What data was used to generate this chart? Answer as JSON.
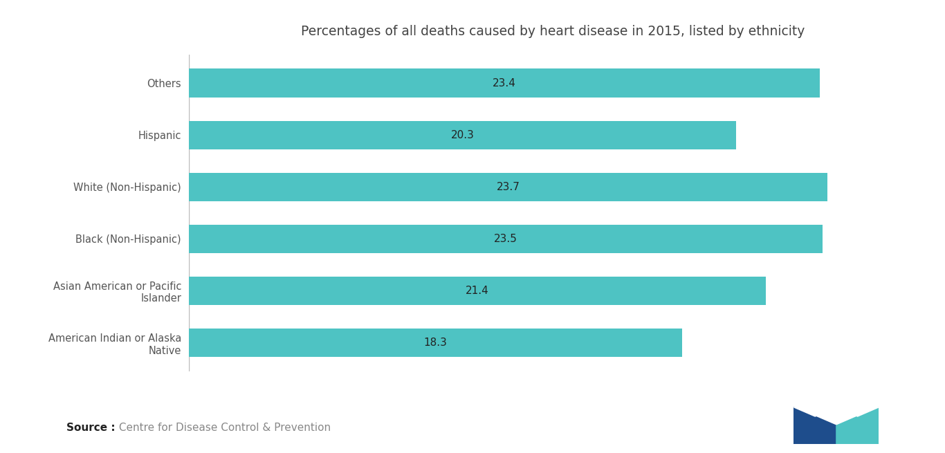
{
  "title": "Percentages of all deaths caused by heart disease in 2015, listed by ethnicity",
  "categories": [
    "American Indian or Alaska\nNative",
    "Asian American or Pacific\nIslander",
    "Black (Non-Hispanic)",
    "White (Non-Hispanic)",
    "Hispanic",
    "Others"
  ],
  "values": [
    18.3,
    21.4,
    23.5,
    23.7,
    20.3,
    23.4
  ],
  "bar_color": "#4EC3C3",
  "bar_height": 0.55,
  "xlim": [
    0,
    27
  ],
  "title_fontsize": 13.5,
  "label_fontsize": 10.5,
  "value_fontsize": 11,
  "source_bold": "Source :",
  "source_rest": " Centre for Disease Control & Prevention",
  "background_color": "#ffffff",
  "text_color": "#444444",
  "label_color": "#555555",
  "value_color": "#222222",
  "source_fontsize": 11,
  "vline_color": "#bbbbbb"
}
